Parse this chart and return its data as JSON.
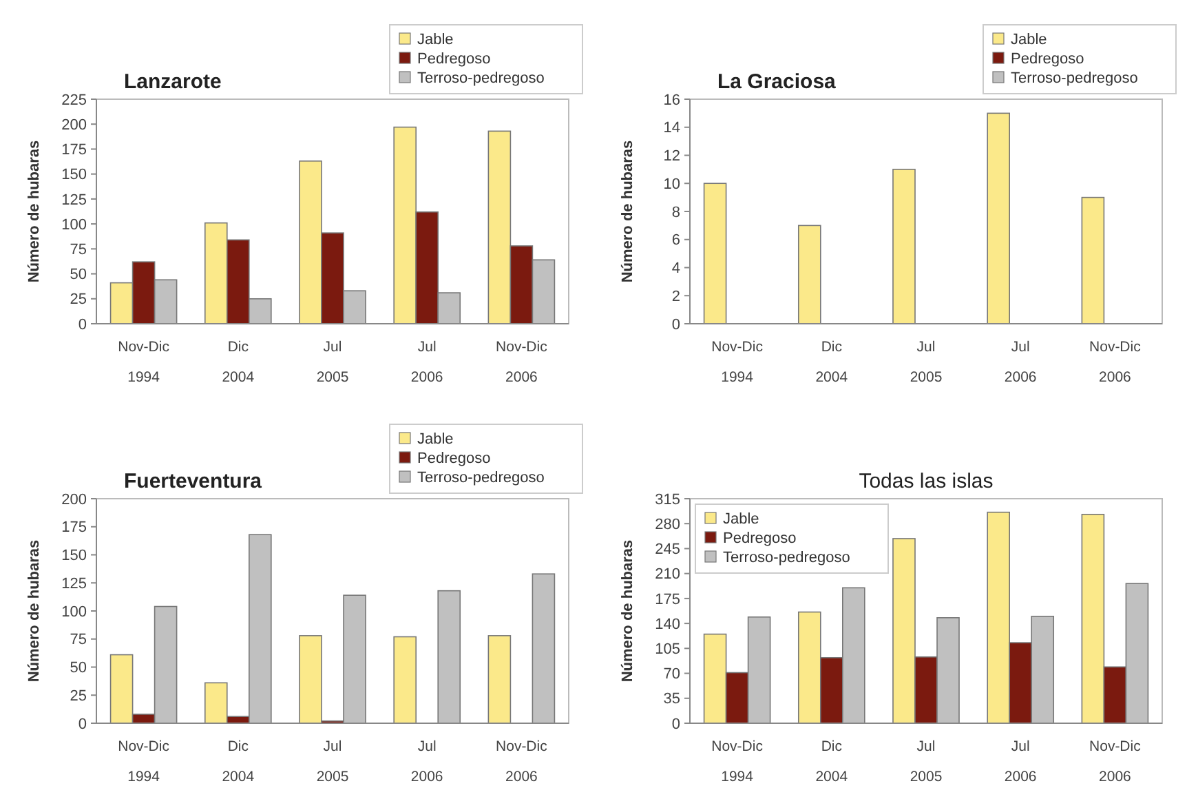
{
  "chart_data": [
    {
      "type": "bar",
      "title": "Lanzarote",
      "ylabel": "Número de hubaras",
      "categories": [
        "Nov-Dic\n1994",
        "Dic\n2004",
        "Jul\n2005",
        "Jul\n2006",
        "Nov-Dic\n2006"
      ],
      "ylim": [
        0,
        225
      ],
      "yticks": [
        0,
        25,
        50,
        75,
        100,
        125,
        150,
        175,
        200,
        225
      ],
      "legend": "top right",
      "series": [
        {
          "name": "Jable",
          "color": "#fbe98a",
          "values": [
            41,
            101,
            163,
            197,
            193
          ]
        },
        {
          "name": "Pedregoso",
          "color": "#7b1a0f",
          "values": [
            62,
            84,
            91,
            112,
            78
          ]
        },
        {
          "name": "Terroso-pedregoso",
          "color": "#c0c0c0",
          "values": [
            44,
            25,
            33,
            31,
            64
          ]
        }
      ]
    },
    {
      "type": "bar",
      "title": "La Graciosa",
      "ylabel": "Número de hubaras",
      "categories": [
        "Nov-Dic\n1994",
        "Dic\n2004",
        "Jul\n2005",
        "Jul\n2006",
        "Nov-Dic\n2006"
      ],
      "ylim": [
        0,
        16
      ],
      "yticks": [
        0,
        2,
        4,
        6,
        8,
        10,
        12,
        14,
        16
      ],
      "legend": "top right",
      "series": [
        {
          "name": "Jable",
          "color": "#fbe98a",
          "values": [
            10,
            7,
            11,
            15,
            9
          ]
        },
        {
          "name": "Pedregoso",
          "color": "#7b1a0f",
          "values": [
            0,
            0,
            0,
            0,
            0
          ]
        },
        {
          "name": "Terroso-pedregoso",
          "color": "#c0c0c0",
          "values": [
            0,
            0,
            0,
            0,
            0
          ]
        }
      ]
    },
    {
      "type": "bar",
      "title": "Fuerteventura",
      "ylabel": "Número de hubaras",
      "categories": [
        "Nov-Dic\n1994",
        "Dic\n2004",
        "Jul\n2005",
        "Jul\n2006",
        "Nov-Dic\n2006"
      ],
      "ylim": [
        0,
        200
      ],
      "yticks": [
        0,
        25,
        50,
        75,
        100,
        125,
        150,
        175,
        200
      ],
      "legend": "top right",
      "series": [
        {
          "name": "Jable",
          "color": "#fbe98a",
          "values": [
            61,
            36,
            78,
            77,
            78
          ]
        },
        {
          "name": "Pedregoso",
          "color": "#7b1a0f",
          "values": [
            8,
            6,
            2,
            0,
            0
          ]
        },
        {
          "name": "Terroso-pedregoso",
          "color": "#c0c0c0",
          "values": [
            104,
            168,
            114,
            118,
            133
          ]
        }
      ]
    },
    {
      "type": "bar",
      "title": "Todas las islas",
      "ylabel": "Número de hubaras",
      "categories": [
        "Nov-Dic\n1994",
        "Dic\n2004",
        "Jul\n2005",
        "Jul\n2006",
        "Nov-Dic\n2006"
      ],
      "ylim": [
        0,
        315
      ],
      "yticks": [
        0,
        35,
        70,
        105,
        140,
        175,
        210,
        245,
        280,
        315
      ],
      "legend": "top left",
      "series": [
        {
          "name": "Jable",
          "color": "#fbe98a",
          "values": [
            125,
            156,
            259,
            296,
            293
          ]
        },
        {
          "name": "Pedregoso",
          "color": "#7b1a0f",
          "values": [
            71,
            92,
            93,
            113,
            79
          ]
        },
        {
          "name": "Terroso-pedregoso",
          "color": "#c0c0c0",
          "values": [
            149,
            190,
            148,
            150,
            196
          ]
        }
      ]
    }
  ]
}
